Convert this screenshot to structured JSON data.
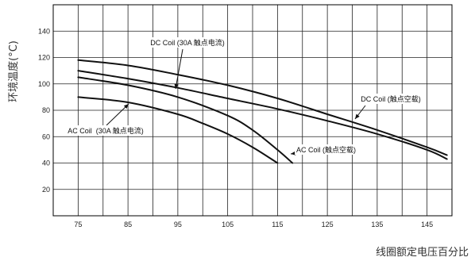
{
  "chart_data": {
    "type": "line",
    "title": "",
    "xlabel": "线圈额定电压百分比",
    "ylabel": "环境温度(°C)",
    "xlim": [
      70,
      150
    ],
    "ylim": [
      0,
      160
    ],
    "xticks": [
      75,
      85,
      95,
      105,
      115,
      125,
      135,
      145
    ],
    "yticks": [
      20,
      40,
      60,
      80,
      100,
      120,
      140
    ],
    "grid": true,
    "legend": "none",
    "series": [
      {
        "name": "DC Coil (30A 触点电流)",
        "x": [
          75,
          85,
          95,
          105,
          115,
          125,
          135,
          145,
          149
        ],
        "y": [
          118,
          114,
          107,
          99,
          89,
          77,
          65,
          52,
          46
        ]
      },
      {
        "name": "DC Coil (触点空载)",
        "x": [
          75,
          85,
          95,
          105,
          115,
          125,
          135,
          145,
          149
        ],
        "y": [
          110,
          104,
          97,
          89,
          81,
          72,
          62,
          50,
          43
        ]
      },
      {
        "name": "AC Coil (触点空载)",
        "x": [
          75,
          85,
          95,
          105,
          110,
          115,
          118
        ],
        "y": [
          105,
          99,
          90,
          76,
          65,
          50,
          40
        ]
      },
      {
        "name": "AC Coil  (30A 触点电流)",
        "x": [
          75,
          85,
          95,
          100,
          105,
          110,
          115
        ],
        "y": [
          90,
          86,
          77,
          70,
          62,
          52,
          40
        ]
      }
    ],
    "annotations": [
      {
        "text": "DC Coil (30A 触点电流)",
        "points_to": "DC Coil (30A 触点电流)"
      },
      {
        "text": "DC Coil (触点空载)",
        "points_to": "DC Coil (触点空载)"
      },
      {
        "text": "AC Coil (触点空载)",
        "points_to": "AC Coil (触点空载)"
      },
      {
        "text": "AC Coil  (30A 触点电流)",
        "points_to": "AC Coil  (30A 触点电流)"
      }
    ]
  }
}
